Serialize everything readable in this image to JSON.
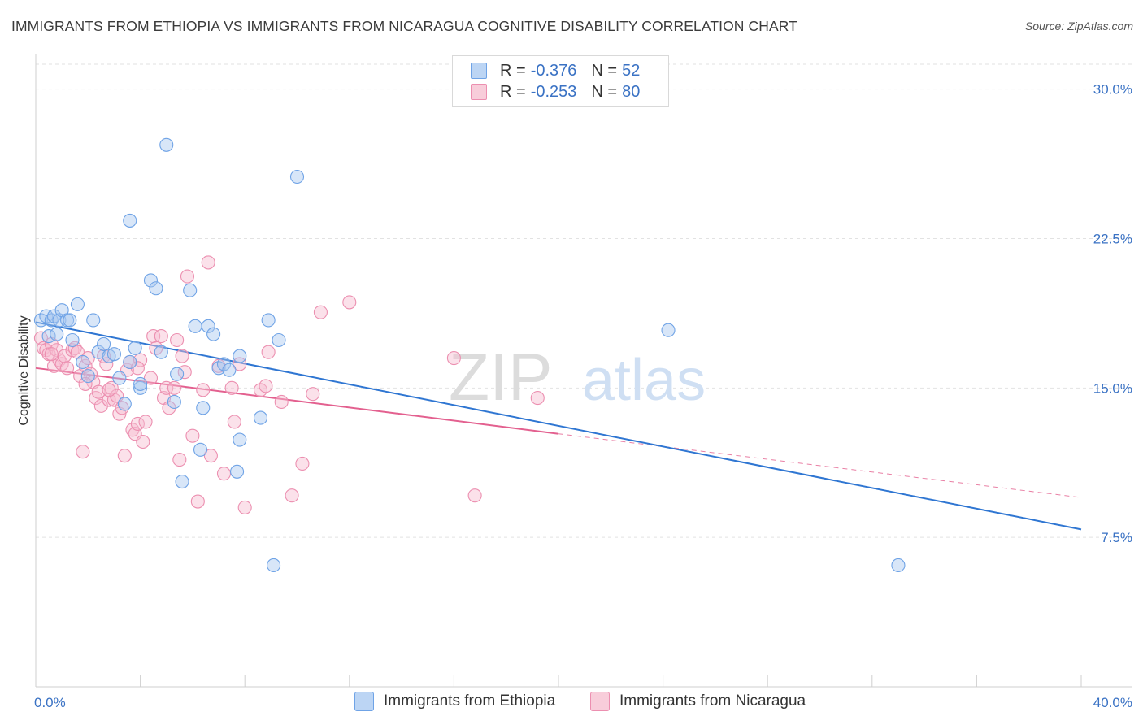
{
  "title": "IMMIGRANTS FROM ETHIOPIA VS IMMIGRANTS FROM NICARAGUA COGNITIVE DISABILITY CORRELATION CHART",
  "source": "Source: ZipAtlas.com",
  "watermark": {
    "zip": "ZIP",
    "atlas": "atlas"
  },
  "legend_top": {
    "rows": [
      {
        "r_label": "R =",
        "r_value": "-0.376",
        "n_label": "N =",
        "n_value": "52",
        "color": "#a8c8f0"
      },
      {
        "r_label": "R =",
        "r_value": "-0.253",
        "n_label": "N =",
        "n_value": "80",
        "color": "#f6bcd0"
      }
    ]
  },
  "chart_data": {
    "type": "scatter",
    "title": "IMMIGRANTS FROM ETHIOPIA VS IMMIGRANTS FROM NICARAGUA COGNITIVE DISABILITY CORRELATION CHART",
    "xlabel": "",
    "ylabel": "Cognitive Disability",
    "xlim": [
      0,
      40
    ],
    "ylim": [
      0,
      31.25
    ],
    "x_tick_labels": [
      {
        "value": 0,
        "label": "0.0%"
      },
      {
        "value": 40,
        "label": "40.0%"
      }
    ],
    "x_minor_ticks": [
      4,
      8,
      12,
      16,
      20,
      24,
      28,
      32,
      36,
      40
    ],
    "y_ticks": [
      {
        "value": 7.5,
        "label": "7.5%"
      },
      {
        "value": 15.0,
        "label": "15.0%"
      },
      {
        "value": 22.5,
        "label": "22.5%"
      },
      {
        "value": 30.0,
        "label": "30.0%"
      }
    ],
    "grid": true,
    "legend_placement": "bottom-center",
    "series": [
      {
        "name": "Immigrants from Ethiopia",
        "color": "#6fa3e6",
        "fill": "#a8c8f0",
        "line_color": "#2f76d2",
        "trend": {
          "x0": 0,
          "y0": 18.3,
          "x1": 40,
          "y1": 7.9
        },
        "points": [
          [
            0.2,
            18.4
          ],
          [
            0.4,
            18.6
          ],
          [
            0.5,
            17.6
          ],
          [
            0.6,
            18.4
          ],
          [
            0.7,
            18.6
          ],
          [
            0.8,
            17.7
          ],
          [
            0.9,
            18.4
          ],
          [
            1.0,
            18.9
          ],
          [
            1.2,
            18.4
          ],
          [
            1.6,
            19.2
          ],
          [
            1.4,
            17.4
          ],
          [
            1.8,
            16.3
          ],
          [
            2.0,
            15.6
          ],
          [
            2.2,
            18.4
          ],
          [
            2.4,
            16.8
          ],
          [
            2.6,
            17.2
          ],
          [
            2.8,
            16.6
          ],
          [
            3.0,
            16.7
          ],
          [
            3.2,
            15.5
          ],
          [
            3.4,
            14.2
          ],
          [
            3.6,
            16.3
          ],
          [
            3.8,
            17.0
          ],
          [
            4.0,
            15.0
          ],
          [
            4.4,
            20.4
          ],
          [
            4.6,
            20.0
          ],
          [
            4.8,
            16.8
          ],
          [
            5.0,
            27.2
          ],
          [
            5.3,
            14.3
          ],
          [
            5.4,
            15.7
          ],
          [
            5.6,
            10.3
          ],
          [
            5.9,
            19.9
          ],
          [
            6.1,
            18.1
          ],
          [
            6.3,
            11.9
          ],
          [
            6.4,
            14.0
          ],
          [
            6.6,
            18.1
          ],
          [
            6.8,
            17.7
          ],
          [
            7.0,
            16.0
          ],
          [
            7.2,
            16.2
          ],
          [
            7.4,
            15.9
          ],
          [
            7.7,
            10.8
          ],
          [
            7.8,
            16.6
          ],
          [
            7.8,
            12.4
          ],
          [
            8.6,
            13.5
          ],
          [
            8.9,
            18.4
          ],
          [
            9.3,
            17.4
          ],
          [
            9.1,
            6.1
          ],
          [
            10.0,
            25.6
          ],
          [
            4.0,
            15.2
          ],
          [
            3.6,
            23.4
          ],
          [
            24.2,
            17.9
          ],
          [
            33.0,
            6.1
          ],
          [
            1.3,
            18.4
          ]
        ]
      },
      {
        "name": "Immigrants from Nicaragua",
        "color": "#ec8fb0",
        "fill": "#f6bcd0",
        "line_color": "#e3608f",
        "trend": {
          "x0": 0,
          "y0": 16.0,
          "x1": 20,
          "y1": 12.7
        },
        "trend_dashed": {
          "x0": 20,
          "y0": 12.7,
          "x1": 40,
          "y1": 9.5
        },
        "points": [
          [
            0.2,
            17.5
          ],
          [
            0.3,
            17.0
          ],
          [
            0.4,
            16.9
          ],
          [
            0.5,
            16.7
          ],
          [
            0.6,
            17.2
          ],
          [
            0.7,
            16.1
          ],
          [
            0.8,
            16.9
          ],
          [
            0.9,
            16.4
          ],
          [
            1.0,
            16.2
          ],
          [
            1.1,
            16.6
          ],
          [
            1.2,
            16.0
          ],
          [
            1.4,
            16.9
          ],
          [
            1.5,
            17.0
          ],
          [
            1.6,
            16.8
          ],
          [
            1.7,
            15.6
          ],
          [
            1.8,
            11.8
          ],
          [
            1.9,
            16.1
          ],
          [
            2.0,
            16.5
          ],
          [
            2.1,
            15.7
          ],
          [
            2.2,
            15.3
          ],
          [
            2.3,
            14.5
          ],
          [
            2.4,
            14.8
          ],
          [
            2.5,
            14.1
          ],
          [
            2.6,
            16.6
          ],
          [
            2.7,
            16.2
          ],
          [
            2.8,
            14.4
          ],
          [
            2.9,
            15.0
          ],
          [
            3.0,
            14.4
          ],
          [
            3.1,
            14.6
          ],
          [
            3.2,
            13.7
          ],
          [
            3.3,
            14.0
          ],
          [
            3.4,
            11.6
          ],
          [
            3.5,
            15.9
          ],
          [
            3.6,
            16.3
          ],
          [
            3.7,
            12.9
          ],
          [
            3.8,
            12.7
          ],
          [
            3.9,
            13.2
          ],
          [
            4.0,
            16.4
          ],
          [
            4.1,
            12.3
          ],
          [
            4.2,
            13.3
          ],
          [
            4.4,
            15.5
          ],
          [
            4.5,
            17.6
          ],
          [
            4.6,
            17.0
          ],
          [
            4.8,
            17.6
          ],
          [
            4.9,
            14.5
          ],
          [
            5.0,
            15.0
          ],
          [
            5.1,
            14.0
          ],
          [
            5.3,
            15.0
          ],
          [
            5.4,
            17.4
          ],
          [
            5.5,
            11.4
          ],
          [
            5.6,
            16.6
          ],
          [
            5.7,
            15.8
          ],
          [
            5.8,
            20.6
          ],
          [
            6.0,
            12.6
          ],
          [
            6.2,
            9.3
          ],
          [
            6.4,
            14.9
          ],
          [
            6.6,
            21.3
          ],
          [
            6.7,
            11.6
          ],
          [
            7.0,
            16.1
          ],
          [
            7.2,
            10.7
          ],
          [
            7.5,
            15.0
          ],
          [
            7.6,
            13.3
          ],
          [
            7.8,
            16.2
          ],
          [
            8.0,
            9.0
          ],
          [
            8.6,
            14.9
          ],
          [
            8.8,
            15.1
          ],
          [
            8.9,
            16.8
          ],
          [
            9.4,
            14.3
          ],
          [
            9.8,
            9.6
          ],
          [
            10.2,
            11.2
          ],
          [
            10.6,
            14.7
          ],
          [
            10.9,
            18.8
          ],
          [
            12.0,
            19.3
          ],
          [
            16.0,
            16.5
          ],
          [
            16.8,
            9.6
          ],
          [
            19.2,
            14.5
          ],
          [
            0.6,
            16.7
          ],
          [
            1.9,
            15.2
          ],
          [
            2.8,
            14.9
          ],
          [
            3.9,
            16.0
          ]
        ]
      }
    ]
  }
}
